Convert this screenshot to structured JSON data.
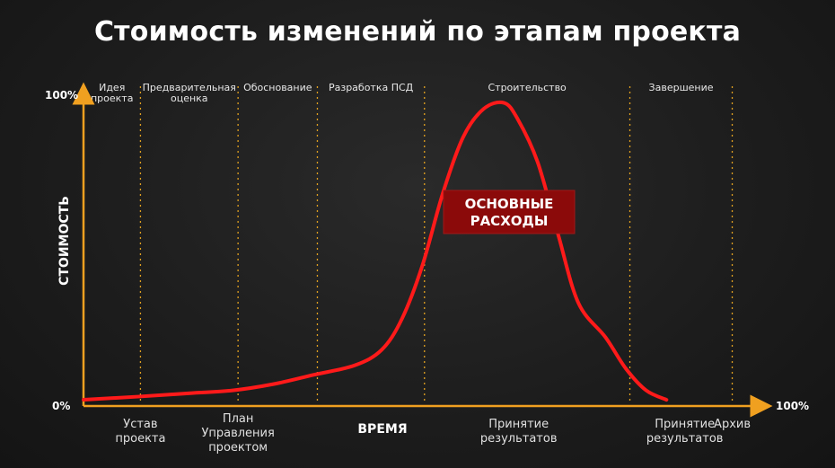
{
  "title": "Стоимость изменений по этапам проекта",
  "chart_data": {
    "type": "line",
    "title": "Стоимость изменений по этапам проекта",
    "xlabel": "ВРЕМЯ",
    "ylabel": "СТОИМОСТЬ",
    "y_min_label": "0%",
    "y_max_label": "100%",
    "x_max_label": "100%",
    "xlim": [
      0,
      100
    ],
    "ylim": [
      0,
      100
    ],
    "phases": [
      {
        "label": [
          "Идея",
          "проекта"
        ],
        "start": 0,
        "end": 8.4
      },
      {
        "label": [
          "Предварительная",
          "оценка"
        ],
        "start": 8.4,
        "end": 22.8
      },
      {
        "label": [
          "Обоснование"
        ],
        "start": 22.8,
        "end": 34.5
      },
      {
        "label": [
          "Разработка ПСД"
        ],
        "start": 34.5,
        "end": 50.3
      },
      {
        "label": [
          "Строительство"
        ],
        "start": 50.3,
        "end": 80.6
      },
      {
        "label": [
          "Завершение"
        ],
        "start": 80.6,
        "end": 95.7
      }
    ],
    "milestones": [
      {
        "label": [
          "Устав",
          "проекта"
        ],
        "x": 8.4
      },
      {
        "label": [
          "План",
          "Управления",
          "проектом"
        ],
        "x": 22.8
      },
      {
        "label": [
          "Принятие",
          "результатов"
        ],
        "x": 64.2
      },
      {
        "label": [
          "Принятие",
          "результатов"
        ],
        "x": 88.7
      },
      {
        "label": [
          "Архив"
        ],
        "x": 95.7
      }
    ],
    "series": [
      {
        "x": [
          0,
          8,
          15,
          22,
          28,
          34,
          40,
          44,
          47,
          50,
          53,
          56,
          59,
          62,
          64,
          67,
          70,
          73,
          77,
          80,
          83,
          86
        ],
        "y": [
          2,
          3,
          4,
          5,
          7,
          10,
          13,
          18,
          28,
          45,
          68,
          86,
          95,
          97,
          92,
          78,
          55,
          33,
          22,
          12,
          5,
          2
        ]
      }
    ],
    "annotation": [
      "ОСНОВНЫЕ",
      "РАСХОДЫ"
    ],
    "colors": {
      "axis": "#f0a020",
      "divider": "#e0a020",
      "curve": "#ff1a1a",
      "annotation_bg": "#8b0a0a"
    }
  }
}
